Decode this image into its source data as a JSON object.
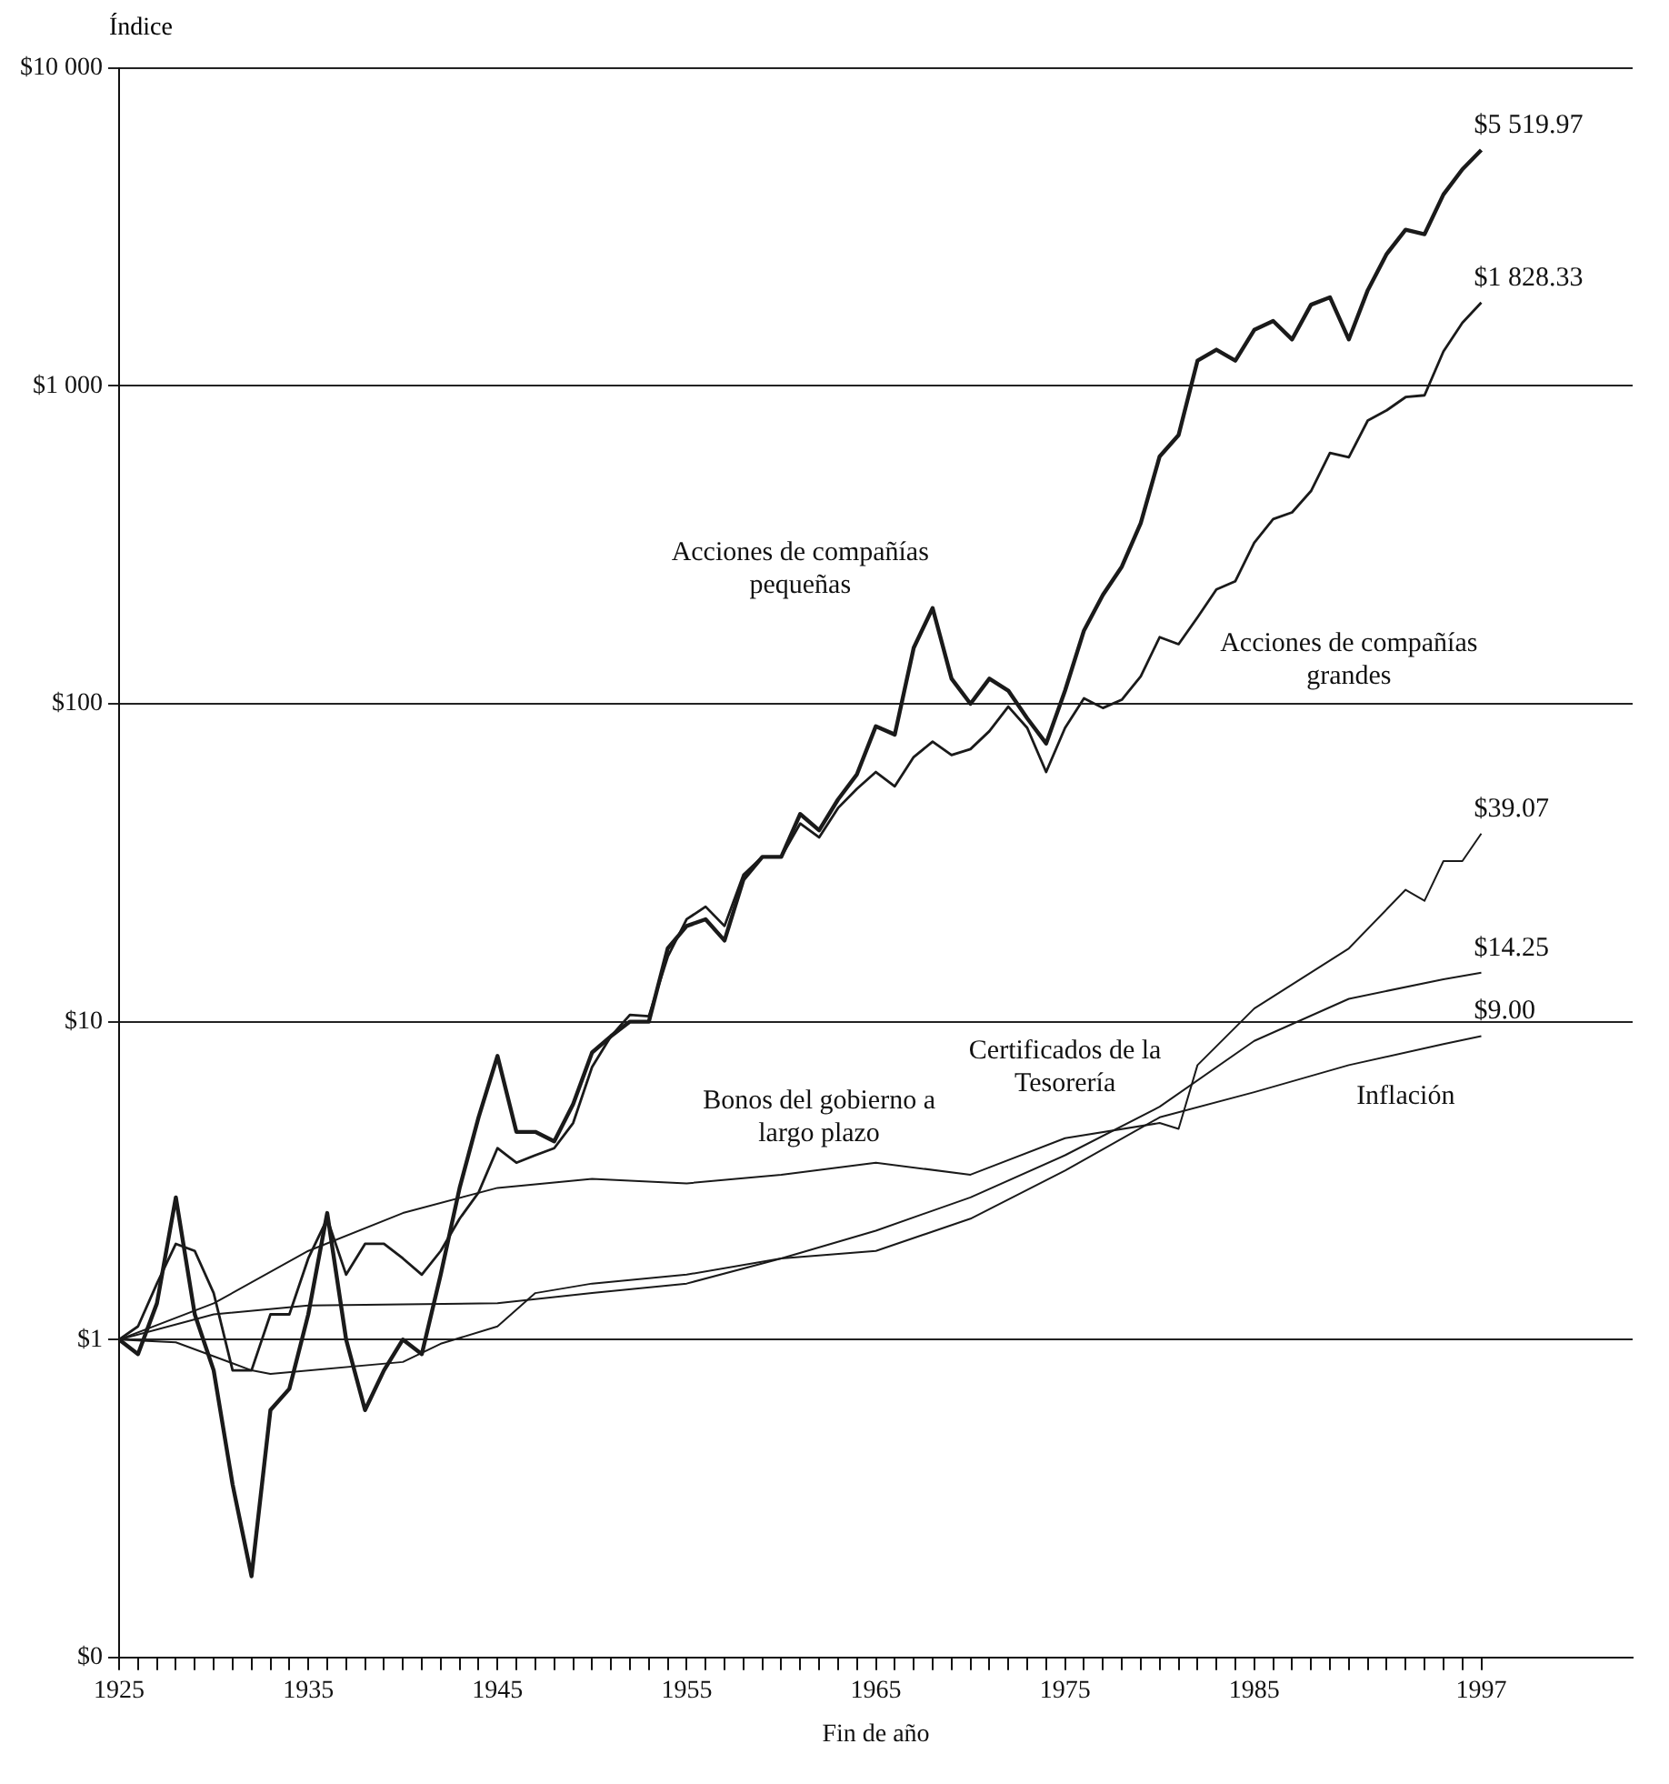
{
  "chart_data": {
    "type": "line",
    "ylabel": "Índice",
    "xlabel": "Fin de año",
    "log": "y",
    "grid": "y",
    "legend": false,
    "marker": "none",
    "line_style": "solid",
    "xlim": [
      1925,
      2005
    ],
    "ylim": [
      0.1,
      10000
    ],
    "yticks": [
      {
        "value": 0.1,
        "label": "$0"
      },
      {
        "value": 1,
        "label": "$1"
      },
      {
        "value": 10,
        "label": "$10"
      },
      {
        "value": 100,
        "label": "$100"
      },
      {
        "value": 1000,
        "label": "$1 000"
      },
      {
        "value": 10000,
        "label": "$10 000"
      }
    ],
    "xticks": [
      1925,
      {
        "value": 1926,
        "label": null
      },
      {
        "value": 1927,
        "label": null
      },
      {
        "value": 1928,
        "label": null
      },
      {
        "value": 1929,
        "label": null
      },
      {
        "value": 1930,
        "label": null
      },
      {
        "value": 1931,
        "label": null
      },
      {
        "value": 1932,
        "label": null
      },
      {
        "value": 1933,
        "label": null
      },
      {
        "value": 1934,
        "label": null
      },
      1935,
      {
        "value": 1936,
        "label": null
      },
      {
        "value": 1937,
        "label": null
      },
      {
        "value": 1938,
        "label": null
      },
      {
        "value": 1939,
        "label": null
      },
      {
        "value": 1940,
        "label": null
      },
      {
        "value": 1941,
        "label": null
      },
      {
        "value": 1942,
        "label": null
      },
      {
        "value": 1943,
        "label": null
      },
      {
        "value": 1944,
        "label": null
      },
      1945,
      {
        "value": 1946,
        "label": null
      },
      {
        "value": 1947,
        "label": null
      },
      {
        "value": 1948,
        "label": null
      },
      {
        "value": 1949,
        "label": null
      },
      {
        "value": 1950,
        "label": null
      },
      {
        "value": 1951,
        "label": null
      },
      {
        "value": 1952,
        "label": null
      },
      {
        "value": 1953,
        "label": null
      },
      {
        "value": 1954,
        "label": null
      },
      1955,
      {
        "value": 1956,
        "label": null
      },
      {
        "value": 1957,
        "label": null
      },
      {
        "value": 1958,
        "label": null
      },
      {
        "value": 1959,
        "label": null
      },
      {
        "value": 1960,
        "label": null
      },
      {
        "value": 1961,
        "label": null
      },
      {
        "value": 1962,
        "label": null
      },
      {
        "value": 1963,
        "label": null
      },
      {
        "value": 1964,
        "label": null
      },
      1965,
      {
        "value": 1966,
        "label": null
      },
      {
        "value": 1967,
        "label": null
      },
      {
        "value": 1968,
        "label": null
      },
      {
        "value": 1969,
        "label": null
      },
      {
        "value": 1970,
        "label": null
      },
      {
        "value": 1971,
        "label": null
      },
      {
        "value": 1972,
        "label": null
      },
      {
        "value": 1973,
        "label": null
      },
      {
        "value": 1974,
        "label": null
      },
      1975,
      {
        "value": 1976,
        "label": null
      },
      {
        "value": 1977,
        "label": null
      },
      {
        "value": 1978,
        "label": null
      },
      {
        "value": 1979,
        "label": null
      },
      {
        "value": 1980,
        "label": null
      },
      {
        "value": 1981,
        "label": null
      },
      {
        "value": 1982,
        "label": null
      },
      {
        "value": 1983,
        "label": null
      },
      {
        "value": 1984,
        "label": null
      },
      1985,
      {
        "value": 1986,
        "label": null
      },
      {
        "value": 1987,
        "label": null
      },
      {
        "value": 1988,
        "label": null
      },
      {
        "value": 1989,
        "label": null
      },
      {
        "value": 1990,
        "label": null
      },
      {
        "value": 1991,
        "label": null
      },
      {
        "value": 1992,
        "label": null
      },
      {
        "value": 1993,
        "label": null
      },
      {
        "value": 1994,
        "label": null
      },
      {
        "value": 1995,
        "label": null
      },
      {
        "value": 1996,
        "label": null
      },
      1997
    ],
    "series": [
      {
        "name": "Acciones de compañías pequeñas",
        "color": "#1a1a1a",
        "x": [
          1925,
          1926,
          1927,
          1928,
          1929,
          1930,
          1931,
          1932,
          1933,
          1934,
          1935,
          1936,
          1937,
          1938,
          1939,
          1940,
          1941,
          1942,
          1943,
          1944,
          1945,
          1946,
          1947,
          1948,
          1949,
          1950,
          1951,
          1952,
          1953,
          1954,
          1955,
          1956,
          1957,
          1958,
          1959,
          1960,
          1961,
          1962,
          1963,
          1964,
          1965,
          1966,
          1967,
          1968,
          1969,
          1970,
          1971,
          1972,
          1973,
          1974,
          1975,
          1976,
          1977,
          1978,
          1979,
          1980,
          1981,
          1982,
          1983,
          1984,
          1985,
          1986,
          1987,
          1988,
          1989,
          1990,
          1991,
          1992,
          1993,
          1994,
          1995,
          1996,
          1997
        ],
        "values": [
          1,
          0.9,
          1.3,
          2.8,
          1.2,
          0.8,
          0.35,
          0.18,
          0.6,
          0.7,
          1.2,
          2.5,
          1.0,
          0.6,
          0.8,
          1.0,
          0.9,
          1.6,
          3,
          5,
          7.8,
          4.5,
          4.5,
          4.2,
          5.5,
          8,
          9,
          10,
          10,
          17,
          20,
          21,
          18,
          28,
          33,
          33,
          45,
          40,
          50,
          60,
          85,
          80,
          150,
          200,
          120,
          100,
          120,
          110,
          90,
          75,
          110,
          170,
          220,
          270,
          370,
          600,
          700,
          1200,
          1300,
          1200,
          1500,
          1600,
          1400,
          1800,
          1900,
          1400,
          2000,
          2600,
          3100,
          3000,
          4000,
          4800,
          5519.97
        ],
        "value_labels": [
          null,
          null,
          null,
          null,
          null,
          null,
          null,
          null,
          null,
          null,
          null,
          null,
          null,
          null,
          null,
          null,
          null,
          null,
          null,
          null,
          null,
          null,
          null,
          null,
          null,
          null,
          null,
          null,
          null,
          null,
          null,
          null,
          null,
          null,
          null,
          null,
          null,
          null,
          null,
          null,
          null,
          null,
          null,
          null,
          null,
          null,
          null,
          null,
          null,
          null,
          null,
          null,
          null,
          null,
          null,
          null,
          null,
          null,
          null,
          null,
          null,
          null,
          null,
          null,
          null,
          null,
          null,
          null,
          null,
          null,
          null,
          null,
          "$5 519.97"
        ]
      },
      {
        "name": "Acciones de compañías grandes",
        "color": "#1a1a1a",
        "x": [
          1925,
          1926,
          1927,
          1928,
          1929,
          1930,
          1931,
          1932,
          1933,
          1934,
          1935,
          1936,
          1937,
          1938,
          1939,
          1940,
          1941,
          1942,
          1943,
          1944,
          1945,
          1946,
          1947,
          1948,
          1949,
          1950,
          1951,
          1952,
          1953,
          1954,
          1955,
          1956,
          1957,
          1958,
          1959,
          1960,
          1961,
          1962,
          1963,
          1964,
          1965,
          1966,
          1967,
          1968,
          1969,
          1970,
          1971,
          1972,
          1973,
          1974,
          1975,
          1976,
          1977,
          1978,
          1979,
          1980,
          1981,
          1982,
          1983,
          1984,
          1985,
          1986,
          1987,
          1988,
          1989,
          1990,
          1991,
          1992,
          1993,
          1994,
          1995,
          1996,
          1997
        ],
        "values": [
          1,
          1.1,
          1.5,
          2.0,
          1.9,
          1.4,
          0.8,
          0.8,
          1.2,
          1.2,
          1.8,
          2.4,
          1.6,
          2.0,
          2.0,
          1.8,
          1.6,
          1.9,
          2.4,
          2.9,
          4.0,
          3.6,
          3.8,
          4.0,
          4.8,
          7.2,
          9.0,
          10.5,
          10.4,
          16,
          21,
          23,
          20,
          29,
          33,
          33,
          42,
          38,
          47,
          54,
          61,
          55,
          68,
          76,
          69,
          72,
          82,
          98,
          84,
          61,
          84,
          104,
          97,
          103,
          122,
          162,
          154,
          187,
          229,
          243,
          321,
          381,
          400,
          467,
          615,
          596,
          778,
          838,
          922,
          934,
          1284,
          1579,
          1828.33
        ],
        "value_labels": [
          null,
          null,
          null,
          null,
          null,
          null,
          null,
          null,
          null,
          null,
          null,
          null,
          null,
          null,
          null,
          null,
          null,
          null,
          null,
          null,
          null,
          null,
          null,
          null,
          null,
          null,
          null,
          null,
          null,
          null,
          null,
          null,
          null,
          null,
          null,
          null,
          null,
          null,
          null,
          null,
          null,
          null,
          null,
          null,
          null,
          null,
          null,
          null,
          null,
          null,
          null,
          null,
          null,
          null,
          null,
          null,
          null,
          null,
          null,
          null,
          null,
          null,
          null,
          null,
          null,
          null,
          null,
          null,
          null,
          null,
          null,
          null,
          "$1 828.33"
        ]
      },
      {
        "name": "Bonos del gobierno a largo plazo",
        "color": "#1a1a1a",
        "x": [
          1925,
          1930,
          1935,
          1940,
          1945,
          1950,
          1955,
          1960,
          1965,
          1970,
          1975,
          1980,
          1981,
          1982,
          1985,
          1990,
          1993,
          1994,
          1995,
          1996,
          1997
        ],
        "values": [
          1,
          1.3,
          1.9,
          2.5,
          3.0,
          3.2,
          3.1,
          3.3,
          3.6,
          3.3,
          4.3,
          4.8,
          4.6,
          7.3,
          11,
          17,
          26,
          24,
          32,
          32,
          39.07
        ],
        "value_labels": [
          null,
          null,
          null,
          null,
          null,
          null,
          null,
          null,
          null,
          null,
          null,
          null,
          null,
          null,
          null,
          null,
          null,
          null,
          null,
          null,
          "$39.07"
        ]
      },
      {
        "name": "Certificados de la Tesorería",
        "color": "#1a1a1a",
        "x": [
          1925,
          1930,
          1935,
          1940,
          1945,
          1950,
          1955,
          1960,
          1965,
          1970,
          1975,
          1980,
          1985,
          1990,
          1995,
          1997
        ],
        "values": [
          1,
          1.2,
          1.28,
          1.29,
          1.3,
          1.4,
          1.5,
          1.8,
          2.2,
          2.8,
          3.8,
          5.4,
          8.7,
          11.8,
          13.6,
          14.25
        ],
        "value_labels": [
          null,
          null,
          null,
          null,
          null,
          null,
          null,
          null,
          null,
          null,
          null,
          null,
          null,
          null,
          null,
          "$14.25"
        ]
      },
      {
        "name": "Inflación",
        "color": "#1a1a1a",
        "x": [
          1925,
          1928,
          1932,
          1933,
          1940,
          1942,
          1945,
          1947,
          1950,
          1955,
          1960,
          1965,
          1970,
          1975,
          1980,
          1985,
          1990,
          1995,
          1997
        ],
        "values": [
          1,
          0.98,
          0.8,
          0.78,
          0.85,
          0.97,
          1.1,
          1.4,
          1.5,
          1.6,
          1.8,
          1.9,
          2.4,
          3.4,
          5.0,
          6.0,
          7.3,
          8.5,
          9.0
        ],
        "value_labels": [
          null,
          null,
          null,
          null,
          null,
          null,
          null,
          null,
          null,
          null,
          null,
          null,
          null,
          null,
          null,
          null,
          null,
          null,
          "$9.00"
        ]
      }
    ]
  }
}
